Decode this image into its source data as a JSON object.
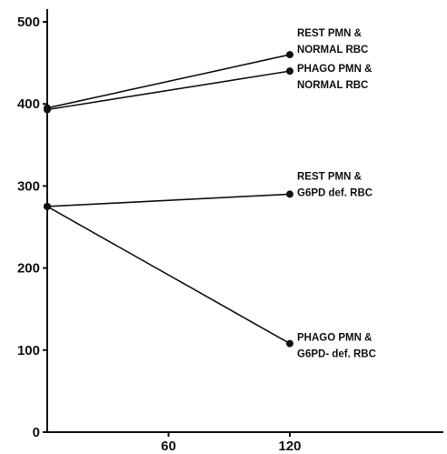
{
  "chart_data": {
    "type": "line",
    "title": "",
    "xlabel": "",
    "ylabel": "",
    "xlim": [
      0,
      200
    ],
    "ylim": [
      0,
      500
    ],
    "x_ticks": [
      60,
      120
    ],
    "y_ticks": [
      0,
      100,
      200,
      300,
      400,
      500
    ],
    "grid": false,
    "series": [
      {
        "label_lines": [
          "REST  PMN &",
          "NORMAL  RBC"
        ],
        "x": [
          0,
          120
        ],
        "y": [
          395,
          460
        ]
      },
      {
        "label_lines": [
          "PHAGO  PMN &",
          "NORMAL  RBC"
        ],
        "x": [
          0,
          120
        ],
        "y": [
          393,
          440
        ]
      },
      {
        "label_lines": [
          "REST  PMN &",
          "G6PD  def. RBC"
        ],
        "x": [
          0,
          120
        ],
        "y": [
          275,
          290
        ]
      },
      {
        "label_lines": [
          "PHAGO  PMN &",
          "G6PD- def. RBC"
        ],
        "x": [
          0,
          120
        ],
        "y": [
          275,
          108
        ]
      }
    ]
  }
}
